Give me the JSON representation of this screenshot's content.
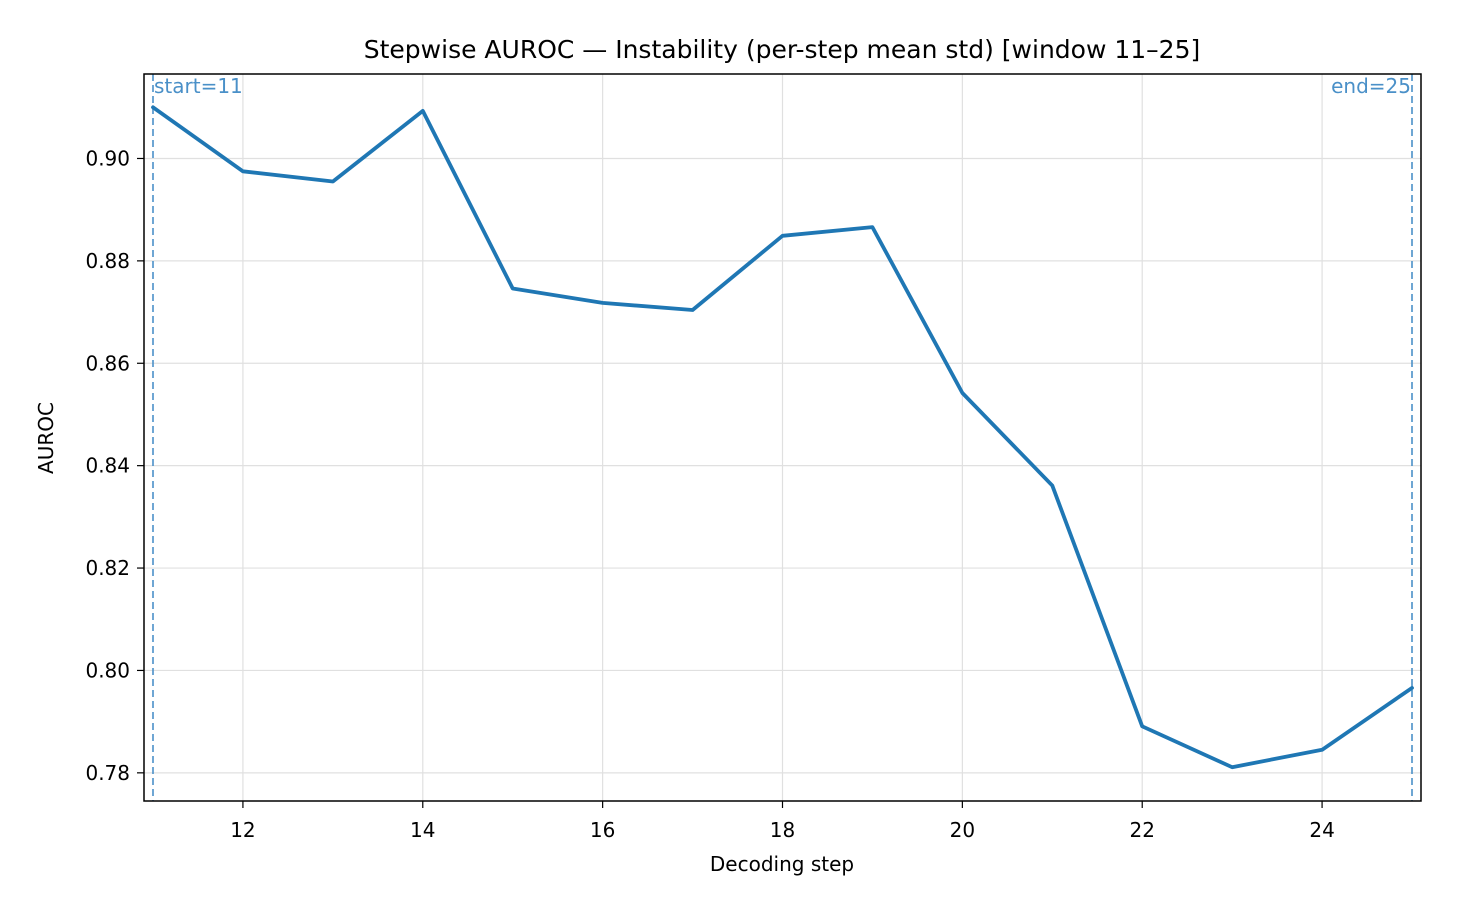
{
  "chart_data": {
    "type": "line",
    "title": "Stepwise AUROC — Instability (per-step mean std)  [window 11–25]",
    "xlabel": "Decoding step",
    "ylabel": "AUROC",
    "xlim": [
      10.9,
      25.1
    ],
    "ylim": [
      0.7745,
      0.9165
    ],
    "xticks": [
      12,
      14,
      16,
      18,
      20,
      22,
      24
    ],
    "xtick_labels": [
      "12",
      "14",
      "16",
      "18",
      "20",
      "22",
      "24"
    ],
    "yticks": [
      0.78,
      0.8,
      0.82,
      0.84,
      0.86,
      0.88,
      0.9
    ],
    "ytick_labels": [
      "0.78",
      "0.80",
      "0.82",
      "0.84",
      "0.86",
      "0.88",
      "0.90"
    ],
    "grid": true,
    "series": [
      {
        "color": "#1f77b4",
        "x": [
          11,
          12,
          13,
          14,
          15,
          16,
          17,
          18,
          19,
          20,
          21,
          22,
          23,
          24,
          25
        ],
        "y": [
          0.91,
          0.8975,
          0.8955,
          0.9093,
          0.8746,
          0.8718,
          0.8704,
          0.8849,
          0.8866,
          0.8542,
          0.8361,
          0.7891,
          0.7811,
          0.7845,
          0.7966
        ]
      }
    ],
    "vlines": [
      {
        "x": 11,
        "label": "start=11",
        "color": "#4a90c8"
      },
      {
        "x": 25,
        "label": "end=25",
        "color": "#4a90c8"
      }
    ]
  }
}
